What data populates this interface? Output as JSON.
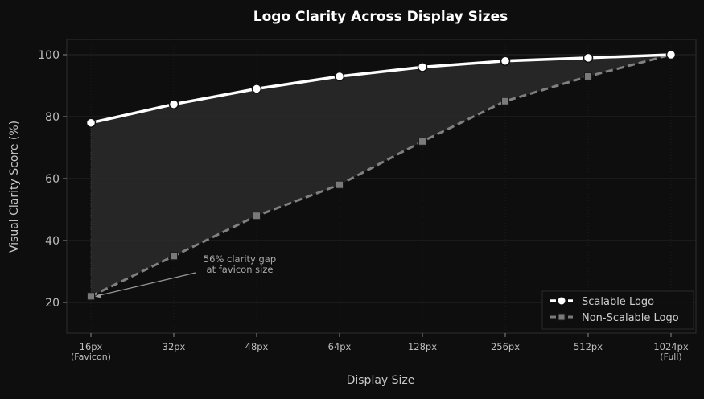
{
  "chart_data": {
    "type": "line",
    "title": "Logo Clarity Across Display Sizes",
    "xlabel": "Display Size",
    "ylabel": "Visual Clarity Score (%)",
    "categories": [
      "16px\n(Favicon)",
      "32px",
      "48px",
      "64px",
      "128px",
      "256px",
      "512px",
      "1024px\n(Full)"
    ],
    "category_labels": [
      [
        "16px",
        "(Favicon)"
      ],
      [
        "32px"
      ],
      [
        "48px"
      ],
      [
        "64px"
      ],
      [
        "128px"
      ],
      [
        "256px"
      ],
      [
        "512px"
      ],
      [
        "1024px",
        "(Full)"
      ]
    ],
    "series": [
      {
        "name": "Scalable Logo",
        "values": [
          78,
          84,
          89,
          93,
          96,
          98,
          99,
          100
        ],
        "color": "#ffffff",
        "style": "solid",
        "marker": "circle"
      },
      {
        "name": "Non-Scalable Logo",
        "values": [
          22,
          35,
          48,
          58,
          72,
          85,
          93,
          100
        ],
        "color": "#808080",
        "style": "dashed",
        "marker": "square"
      }
    ],
    "ylim": [
      10,
      105
    ],
    "yticks": [
      20,
      40,
      60,
      80,
      100
    ],
    "grid": true,
    "legend_position": "lower right",
    "fill_between": true,
    "annotation": {
      "text_lines": [
        "56% clarity gap",
        "at favicon size"
      ],
      "target_index": 0,
      "target_series": 1
    }
  },
  "colors": {
    "background": "#0e0e0e",
    "grid": "#262626",
    "fill": "#2a2a2a",
    "text": "#bdbdbd",
    "title": "#ffffff"
  }
}
